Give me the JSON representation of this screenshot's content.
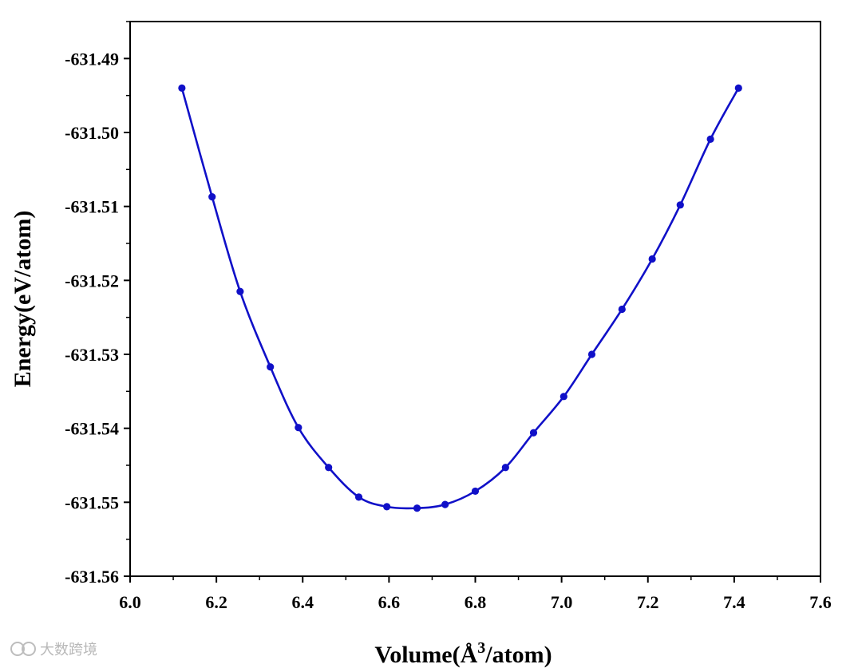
{
  "watermark": {
    "icon": "wechat-channel-logo-icon",
    "text": "大数跨境",
    "color": "#bdbdbd"
  },
  "chart_data": {
    "type": "line",
    "title": "",
    "xlabel_main": "Volume(Å",
    "xlabel_sup": "3",
    "xlabel_tail": "/atom)",
    "ylabel": "Energy(eV/atom)",
    "xlim": [
      6.0,
      7.6
    ],
    "ylim": [
      -631.56,
      -631.485
    ],
    "xticks": [
      6.0,
      6.2,
      6.4,
      6.6,
      6.8,
      7.0,
      7.2,
      7.4,
      7.6
    ],
    "xtick_labels": [
      "6.0",
      "6.2",
      "6.4",
      "6.6",
      "6.8",
      "7.0",
      "7.2",
      "7.4",
      "7.6"
    ],
    "yticks": [
      -631.49,
      -631.5,
      -631.51,
      -631.52,
      -631.53,
      -631.54,
      -631.55,
      -631.56
    ],
    "ytick_labels": [
      "-631.49",
      "-631.50",
      "-631.51",
      "-631.52",
      "-631.53",
      "-631.54",
      "-631.55",
      "-631.56"
    ],
    "grid": false,
    "legend": "none",
    "series": [
      {
        "color": "#1010c8",
        "x": [
          6.12,
          6.19,
          6.255,
          6.325,
          6.39,
          6.46,
          6.53,
          6.595,
          6.665,
          6.73,
          6.8,
          6.87,
          6.935,
          7.005,
          7.07,
          7.14,
          7.21,
          7.275,
          7.345,
          7.41
        ],
        "y": [
          -631.494,
          -631.5087,
          -631.5215,
          -631.5317,
          -631.5399,
          -631.5453,
          -631.5493,
          -631.5506,
          -631.5508,
          -631.5503,
          -631.5485,
          -631.5453,
          -631.5406,
          -631.5357,
          -631.53,
          -631.5239,
          -631.5171,
          -631.5098,
          -631.5009,
          -631.494
        ]
      }
    ]
  }
}
